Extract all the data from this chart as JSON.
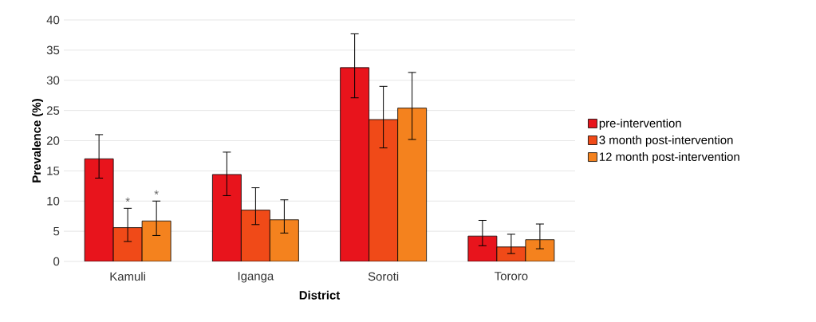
{
  "chart_data": {
    "type": "bar",
    "xlabel": "District",
    "ylabel": "Prevalence (%)",
    "categories": [
      "Kamuli",
      "Iganga",
      "Soroti",
      "Tororo"
    ],
    "series": [
      {
        "name": "pre-intervention",
        "color": "#e8141c",
        "values": [
          17.0,
          14.4,
          32.1,
          4.2
        ],
        "errors": [
          [
            13.8,
            21.0
          ],
          [
            10.9,
            18.1
          ],
          [
            27.1,
            37.7
          ],
          [
            2.6,
            6.8
          ]
        ]
      },
      {
        "name": "3 month post-intervention",
        "color": "#f04a18",
        "values": [
          5.6,
          8.5,
          23.5,
          2.4
        ],
        "errors": [
          [
            3.3,
            8.8
          ],
          [
            6.1,
            12.2
          ],
          [
            18.8,
            29.0
          ],
          [
            1.3,
            4.5
          ]
        ]
      },
      {
        "name": "12 month post-intervention",
        "color": "#f4821e",
        "values": [
          6.7,
          6.9,
          25.4,
          3.6
        ],
        "errors": [
          [
            4.3,
            10.0
          ],
          [
            4.7,
            10.2
          ],
          [
            20.2,
            31.3
          ],
          [
            2.1,
            6.2
          ]
        ]
      }
    ],
    "annotations": [
      "*",
      "*"
    ],
    "ylim": [
      0,
      40
    ],
    "yticks": [
      0,
      5,
      10,
      15,
      20,
      25,
      30,
      35,
      40
    ],
    "grid": "y",
    "legend": "right"
  }
}
